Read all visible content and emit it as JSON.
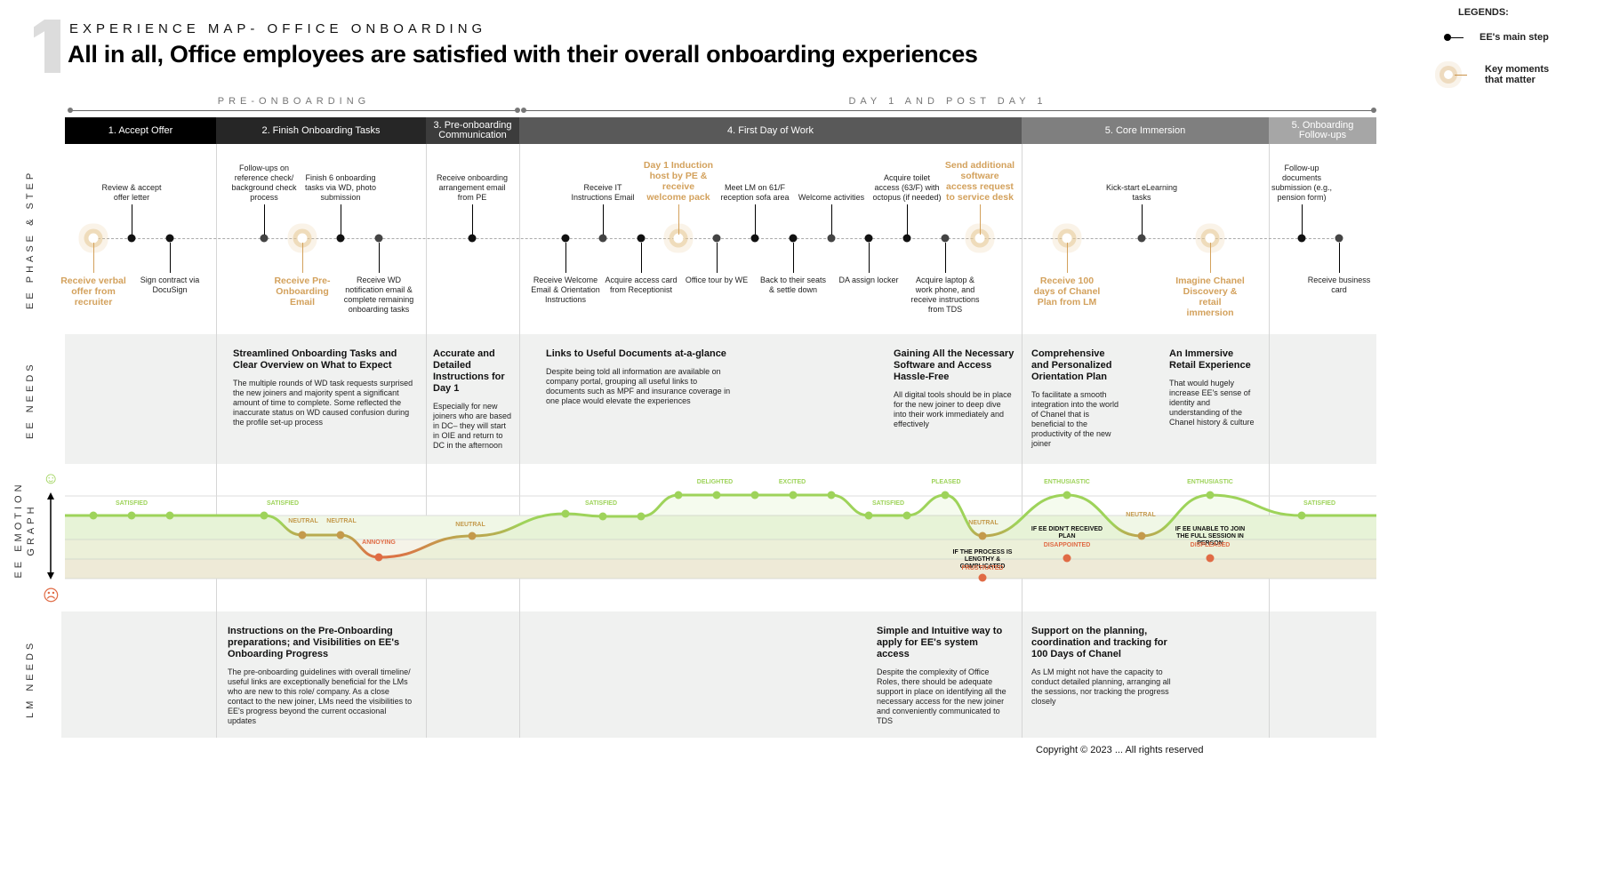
{
  "header": {
    "section_number": "1",
    "eyebrow": "EXPERIENCE MAP- OFFICE ONBOARDING",
    "headline": "All in all, Office employees are satisfied with their overall onboarding experiences"
  },
  "legend": {
    "title": "LEGENDS:",
    "main_step": "EE's main step",
    "key_moment": "Key moments that matter"
  },
  "periods": [
    {
      "label": "PRE-ONBOARDING"
    },
    {
      "label": "DAY 1 AND POST DAY 1"
    }
  ],
  "phases": [
    {
      "label": "1. Accept Offer",
      "color": "#000000"
    },
    {
      "label": "2. Finish Onboarding Tasks",
      "color": "#262626"
    },
    {
      "label": "3. Pre-onboarding Communication",
      "color": "#3c3c3c"
    },
    {
      "label": "4. First Day of Work",
      "color": "#595959"
    },
    {
      "label": "5. Core Immersion",
      "color": "#7f7f7f"
    },
    {
      "label": "5. Onboarding Follow-ups",
      "color": "#a6a6a6"
    }
  ],
  "row_labels": {
    "steps": "EE PHASE & STEP",
    "needs": "EE NEEDS",
    "emotion": "EE EMOTION GRAPH",
    "lm": "LM NEEDS"
  },
  "steps": [
    {
      "label": "Receive verbal offer from recruiter",
      "key": true,
      "pos": "below"
    },
    {
      "label": "Review & accept offer letter",
      "key": false,
      "pos": "above"
    },
    {
      "label": "Sign contract via DocuSign",
      "key": false,
      "pos": "below"
    },
    {
      "label": "Follow-ups on reference check/ background check process",
      "key": false,
      "pos": "above"
    },
    {
      "label": "Receive Pre-Onboarding Email",
      "key": true,
      "pos": "below"
    },
    {
      "label": "Finish 6 onboarding tasks via WD, photo submission",
      "key": false,
      "pos": "above"
    },
    {
      "label": "Receive WD notification email & complete remaining onboarding tasks",
      "key": false,
      "pos": "below"
    },
    {
      "label": "Receive onboarding arrangement email from PE",
      "key": false,
      "pos": "above"
    },
    {
      "label": "Receive Welcome Email & Orientation Instructions",
      "key": false,
      "pos": "below"
    },
    {
      "label": "Receive IT Instructions Email",
      "key": false,
      "pos": "above"
    },
    {
      "label": "Acquire access card from Receptionist",
      "key": false,
      "pos": "below"
    },
    {
      "label": "Day 1 Induction host by PE & receive welcome pack",
      "key": true,
      "pos": "above"
    },
    {
      "label": "Office tour by WE",
      "key": false,
      "pos": "below"
    },
    {
      "label": "Meet LM on 61/F reception sofa area",
      "key": false,
      "pos": "above"
    },
    {
      "label": "Back to their seats & settle down",
      "key": false,
      "pos": "below"
    },
    {
      "label": "Welcome activities",
      "key": false,
      "pos": "above"
    },
    {
      "label": "DA assign locker",
      "key": false,
      "pos": "below"
    },
    {
      "label": "Acquire toilet access (63/F) with octopus (if needed)",
      "key": false,
      "pos": "above"
    },
    {
      "label": "Acquire laptop & work phone, and receive instructions from TDS",
      "key": false,
      "pos": "below"
    },
    {
      "label": "Send additional software access request to service desk",
      "key": true,
      "pos": "above"
    },
    {
      "label": "Receive 100 days of Chanel Plan from LM",
      "key": true,
      "pos": "below"
    },
    {
      "label": "Kick-start eLearning tasks",
      "key": false,
      "pos": "above"
    },
    {
      "label": "Imagine Chanel Discovery & retail immersion",
      "key": true,
      "pos": "below"
    },
    {
      "label": "Follow-up documents submission (e.g., pension form)",
      "key": false,
      "pos": "above"
    },
    {
      "label": "Receive business card",
      "key": false,
      "pos": "below"
    }
  ],
  "ee_needs": [
    {
      "title": "Streamlined Onboarding Tasks and Clear Overview on What to Expect",
      "body": "The multiple rounds of WD task requests surprised the new joiners and majority spent a significant amount of time to complete. Some reflected the inaccurate status on WD caused confusion during the profile set-up process"
    },
    {
      "title": "Accurate and Detailed Instructions for Day 1",
      "body": "Especially for new joiners who are based in DC– they will start in OIE and return to DC in the afternoon"
    },
    {
      "title": "Links to Useful Documents at-a-glance",
      "body": "Despite being told all information are available on company portal, grouping all useful links to documents such as MPF and insurance coverage in one place would elevate the experiences"
    },
    {
      "title": "Gaining All the Necessary Software and Access Hassle-Free",
      "body": "All digital tools should be in place for the new joiner to deep dive into their work immediately and effectively"
    },
    {
      "title": "Comprehensive and Personalized Orientation Plan",
      "body": "To facilitate a smooth integration into the world of Chanel that is beneficial to the productivity of the new joiner"
    },
    {
      "title": "An Immersive Retail Experience",
      "body": "That would hugely increase EE's sense of identity and understanding of the Chanel history & culture"
    }
  ],
  "emotion": {
    "happy_icon": "smiley-face-icon",
    "sad_icon": "sad-face-icon",
    "labels": [
      {
        "text": "SATISFIED",
        "level": "satisfied"
      },
      {
        "text": "SATISFIED",
        "level": "satisfied"
      },
      {
        "text": "NEUTRAL",
        "level": "neutral"
      },
      {
        "text": "NEUTRAL",
        "level": "neutral"
      },
      {
        "text": "ANNOYING",
        "level": "negative"
      },
      {
        "text": "NEUTRAL",
        "level": "neutral"
      },
      {
        "text": "SATISFIED",
        "level": "satisfied"
      },
      {
        "text": "DELIGHTED",
        "level": "high"
      },
      {
        "text": "EXCITED",
        "level": "high"
      },
      {
        "text": "SATISFIED",
        "level": "satisfied"
      },
      {
        "text": "PLEASED",
        "level": "high"
      },
      {
        "text": "NEUTRAL",
        "level": "neutral"
      },
      {
        "text": "ENTHUSIASTIC",
        "level": "high"
      },
      {
        "text": "NEUTRAL",
        "level": "neutral"
      },
      {
        "text": "ENTHUSIASTIC",
        "level": "high"
      },
      {
        "text": "SATISFIED",
        "level": "satisfied"
      }
    ],
    "alternates": [
      {
        "condition": "IF THE PROCESS IS LENGTHY & COMPLICATED",
        "label": "FRUSTRATED"
      },
      {
        "condition": "IF EE DIDN'T RECEIVED PLAN",
        "label": "DISAPPOINTED"
      },
      {
        "condition": "IF EE UNABLE TO JOIN THE FULL SESSION IN PERSON",
        "label": "DISPLEASED"
      }
    ],
    "colors": {
      "positive": "#9ed35a",
      "neutral": "#c49a4c",
      "negative": "#e06b45"
    }
  },
  "lm_needs": [
    {
      "title": "Instructions on the Pre-Onboarding preparations; and Visibilities on EE's Onboarding Progress",
      "body": "The pre-onboarding guidelines with overall timeline/ useful links are exceptionally beneficial for the LMs who are new to this role/ company. As a close contact to the new joiner, LMs need the visibilities to EE's progress beyond the current occasional updates"
    },
    {
      "title": "Simple and Intuitive way to apply for EE's system access",
      "body": "Despite the complexity of Office Roles, there should be adequate support in place on identifying all the necessary access for the new joiner and conveniently communicated to TDS"
    },
    {
      "title": "Support on the planning, coordination and tracking for 100 Days of Chanel",
      "body": "As LM might not have the capacity to conduct detailed planning, arranging all the sessions, nor tracking the progress closely"
    }
  ],
  "footer": {
    "copyright": "Copyright © 2023 ... All rights reserved"
  }
}
